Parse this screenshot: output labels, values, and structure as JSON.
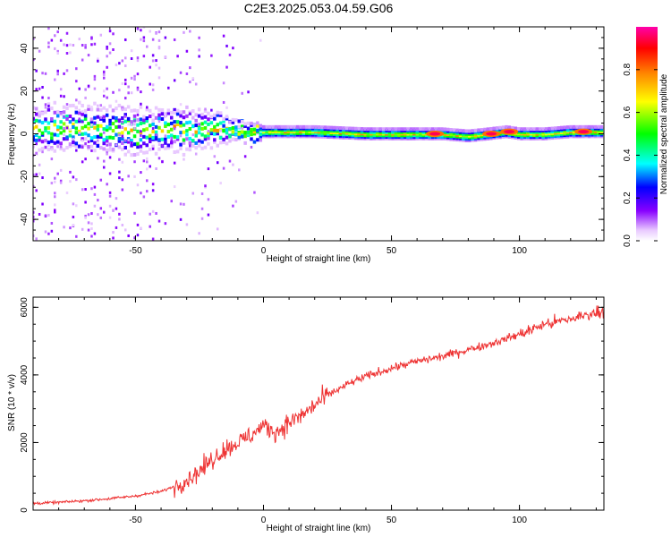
{
  "title": "C2E3.2025.053.04.59.G06",
  "chart_data": [
    {
      "type": "heatmap",
      "xlabel": "Height of straight line (km)",
      "ylabel": "Frequency (Hz)",
      "xlim": [
        -90,
        133
      ],
      "ylim": [
        -50,
        50
      ],
      "x_ticks": [
        {
          "value": -50,
          "label": "-50"
        },
        {
          "value": 0,
          "label": "0"
        },
        {
          "value": 50,
          "label": "50"
        },
        {
          "value": 100,
          "label": "100"
        }
      ],
      "y_ticks": [
        {
          "value": -40,
          "label": "-40"
        },
        {
          "value": -20,
          "label": "-20"
        },
        {
          "value": 0,
          "label": "0"
        },
        {
          "value": 20,
          "label": "20"
        },
        {
          "value": 40,
          "label": "40"
        }
      ],
      "colorbar": {
        "label": "Normalized spectral amplitude",
        "range": [
          0,
          1
        ],
        "ticks": [
          {
            "value": 0.0,
            "label": "0.0"
          },
          {
            "value": 0.2,
            "label": "0.2"
          },
          {
            "value": 0.4,
            "label": "0.4"
          },
          {
            "value": 0.6,
            "label": "0.6"
          },
          {
            "value": 0.8,
            "label": "0.8"
          }
        ],
        "colormap": [
          "#ffffff",
          "#8800ff",
          "#0000ff",
          "#00ffff",
          "#00ff00",
          "#ffff00",
          "#ff8800",
          "#ff0000",
          "#ff00aa"
        ]
      },
      "ridge_frequency_track": {
        "x": [
          -90,
          -70,
          -50,
          -30,
          -15,
          0,
          10,
          20,
          40,
          60,
          65,
          70,
          80,
          88,
          95,
          100,
          110,
          120,
          133
        ],
        "y": [
          2,
          3,
          1,
          2,
          2,
          1,
          1,
          1,
          0,
          0,
          0,
          0,
          -1,
          0,
          1,
          0,
          0,
          1,
          1
        ]
      },
      "ridge_bright_spots": [
        {
          "x": 67,
          "y": 0
        },
        {
          "x": 89,
          "y": 0
        },
        {
          "x": 96,
          "y": 1
        },
        {
          "x": 125,
          "y": 1
        }
      ]
    },
    {
      "type": "line",
      "xlabel": "Height of straight line (km)",
      "ylabel": "SNR (10 * v/v)",
      "xlim": [
        -90,
        133
      ],
      "ylim": [
        0,
        6300
      ],
      "line_color": "#ee3333",
      "x_ticks": [
        {
          "value": -50,
          "label": "-50"
        },
        {
          "value": 0,
          "label": "0"
        },
        {
          "value": 50,
          "label": "50"
        },
        {
          "value": 100,
          "label": "100"
        }
      ],
      "y_ticks": [
        {
          "value": 0,
          "label": "0"
        },
        {
          "value": 2000,
          "label": "2000"
        },
        {
          "value": 4000,
          "label": "4000"
        },
        {
          "value": 6000,
          "label": "6000"
        }
      ],
      "series": [
        {
          "x": [
            -90,
            -80,
            -70,
            -60,
            -50,
            -40,
            -35,
            -30,
            -25,
            -20,
            -15,
            -10,
            -5,
            0,
            5,
            10,
            15,
            20,
            25,
            30,
            35,
            40,
            50,
            60,
            70,
            80,
            90,
            100,
            110,
            120,
            130,
            133
          ],
          "y": [
            200,
            230,
            280,
            340,
            420,
            550,
            700,
            900,
            1150,
            1500,
            1800,
            2000,
            2200,
            2500,
            2300,
            2600,
            2800,
            3100,
            3400,
            3600,
            3800,
            3950,
            4200,
            4400,
            4550,
            4750,
            4950,
            5200,
            5500,
            5650,
            5850,
            5900
          ]
        }
      ]
    }
  ]
}
